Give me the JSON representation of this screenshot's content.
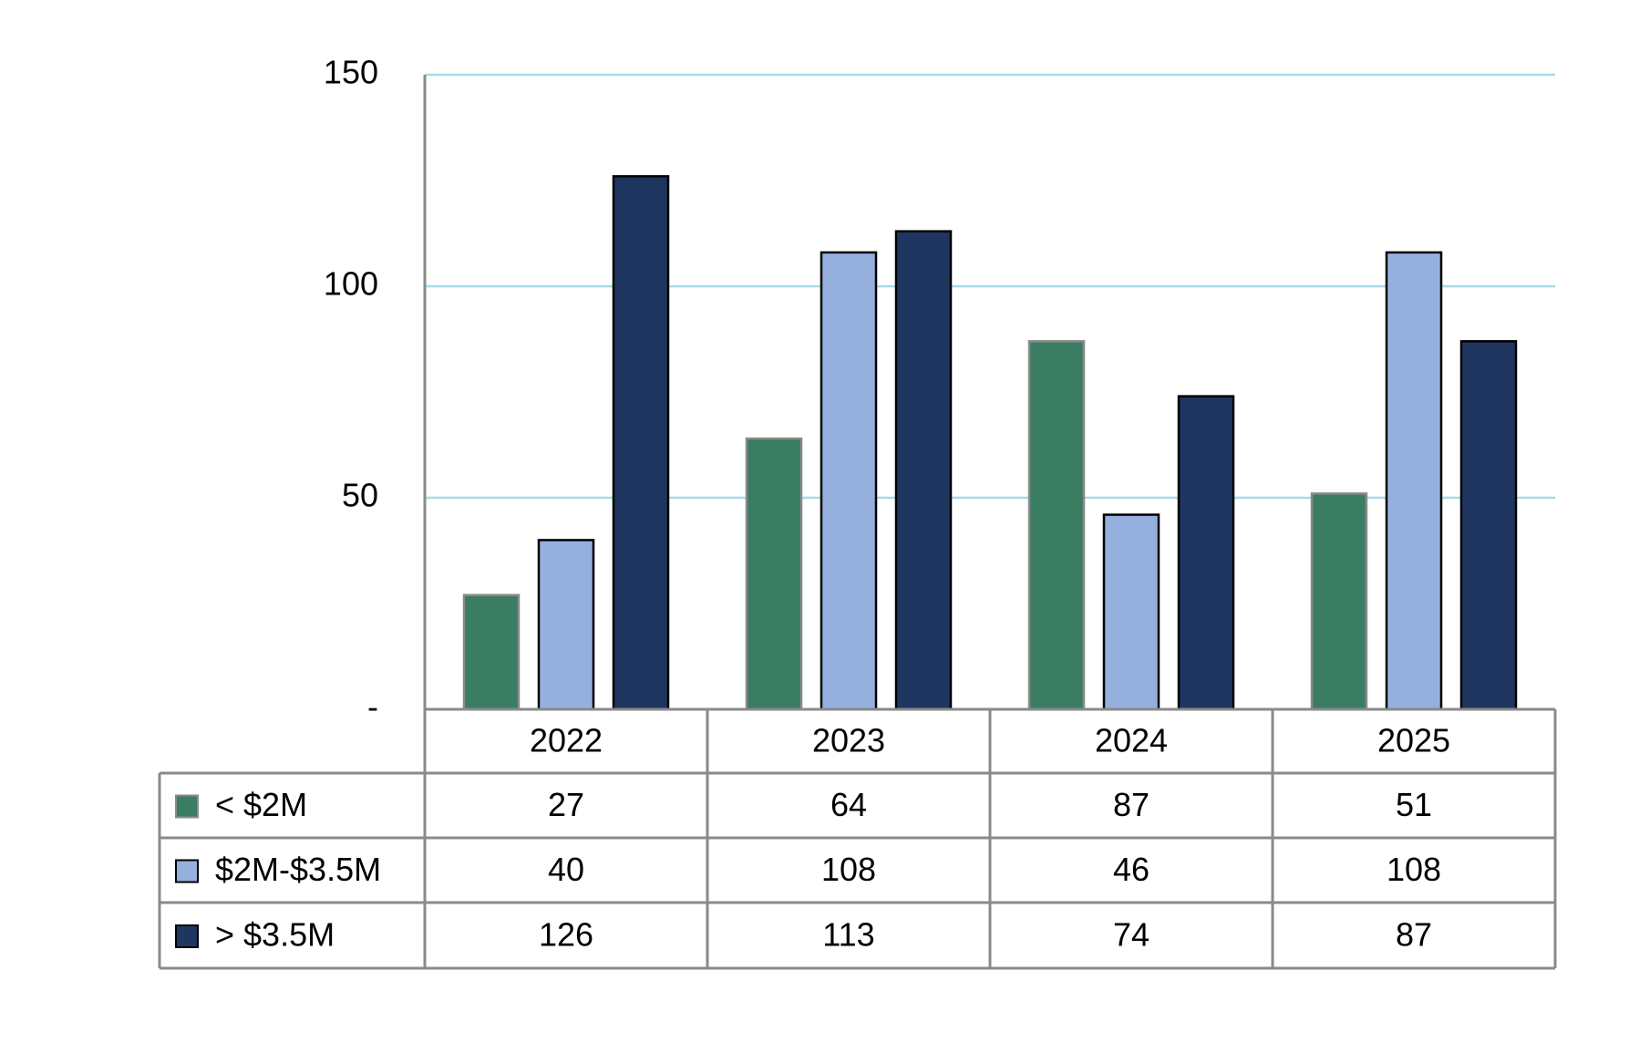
{
  "chart_data": {
    "type": "bar",
    "categories": [
      "2022",
      "2023",
      "2024",
      "2025"
    ],
    "series": [
      {
        "name": "< $2M",
        "color": "#3b7d62",
        "values": [
          27,
          64,
          87,
          51
        ]
      },
      {
        "name": "$2M-$3.5M",
        "color": "#95b0de",
        "values": [
          40,
          108,
          46,
          108
        ]
      },
      {
        "name": "> $3.5M",
        "color": "#1f3660",
        "values": [
          126,
          113,
          74,
          87
        ]
      }
    ],
    "ylim": [
      0,
      150
    ],
    "yticks": [
      {
        "value": 0,
        "label": "-"
      },
      50,
      100,
      150
    ],
    "grid": true,
    "data_table": true
  }
}
